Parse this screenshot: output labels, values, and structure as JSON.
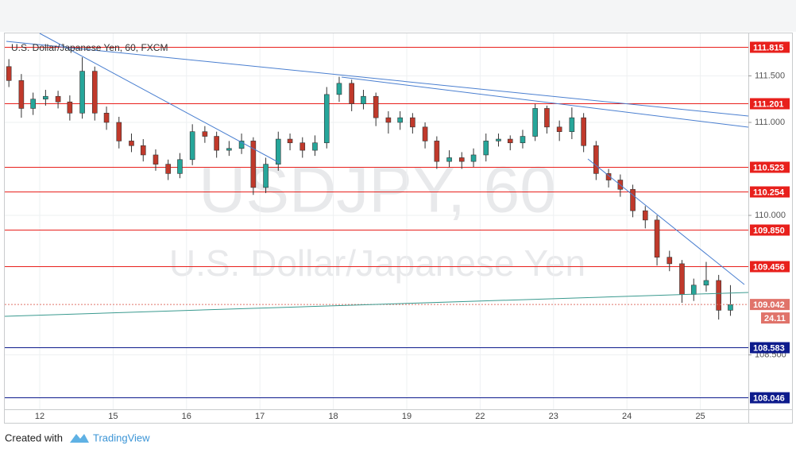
{
  "chart_data": {
    "type": "candlestick",
    "title": "U.S. Dollar/Japanese Yen, 60, FXCM",
    "watermark": {
      "symbol": "USDJPY, 60",
      "description": "U.S. Dollar/Japanese Yen"
    },
    "xlim": [
      -0.476,
      9.654
    ],
    "xticks": [
      {
        "value": 0,
        "label": "12"
      },
      {
        "value": 1,
        "label": "15"
      },
      {
        "value": 2,
        "label": "16"
      },
      {
        "value": 3,
        "label": "17"
      },
      {
        "value": 4,
        "label": "18"
      },
      {
        "value": 5,
        "label": "19"
      },
      {
        "value": 6,
        "label": "22"
      },
      {
        "value": 7,
        "label": "23"
      },
      {
        "value": 8,
        "label": "24"
      },
      {
        "value": 9,
        "label": "25"
      }
    ],
    "ylim": [
      107.915,
      111.957
    ],
    "yticks": [
      {
        "value": 111.5,
        "label": "111.500"
      },
      {
        "value": 111,
        "label": "111.000"
      },
      {
        "value": 110,
        "label": "110.000"
      },
      {
        "value": 108.5,
        "label": "108.500"
      }
    ],
    "up_color": "#26a69a",
    "down_color": "#c0392b",
    "x": [
      -0.42,
      -0.25,
      -0.09,
      0.08,
      0.25,
      0.41,
      0.58,
      0.75,
      0.91,
      1.08,
      1.25,
      1.41,
      1.58,
      1.75,
      1.91,
      2.08,
      2.25,
      2.41,
      2.58,
      2.75,
      2.91,
      3.08,
      3.25,
      3.41,
      3.58,
      3.75,
      3.91,
      4.08,
      4.25,
      4.41,
      4.58,
      4.75,
      4.91,
      5.08,
      5.25,
      5.41,
      5.58,
      5.75,
      5.91,
      6.08,
      6.25,
      6.41,
      6.58,
      6.75,
      6.91,
      7.08,
      7.25,
      7.41,
      7.58,
      7.75,
      7.91,
      8.08,
      8.25,
      8.41,
      8.58,
      8.75,
      8.91,
      9.08,
      9.25,
      9.41
    ],
    "open": [
      111.6,
      111.45,
      111.15,
      111.25,
      111.28,
      111.22,
      111.1,
      111.55,
      111.1,
      111.0,
      110.8,
      110.75,
      110.65,
      110.55,
      110.45,
      110.6,
      110.9,
      110.85,
      110.7,
      110.72,
      110.8,
      110.3,
      110.55,
      110.82,
      110.78,
      110.7,
      110.78,
      111.3,
      111.42,
      111.2,
      111.28,
      111.05,
      111.0,
      111.05,
      110.95,
      110.8,
      110.58,
      110.62,
      110.58,
      110.65,
      110.8,
      110.82,
      110.78,
      110.85,
      111.15,
      110.95,
      110.9,
      111.05,
      110.75,
      110.45,
      110.38,
      110.28,
      110.05,
      109.95,
      109.55,
      109.48,
      109.15,
      109.25,
      109.3,
      108.98
    ],
    "high": [
      111.68,
      111.52,
      111.32,
      111.35,
      111.34,
      111.29,
      111.7,
      111.6,
      111.17,
      111.06,
      110.88,
      110.82,
      110.71,
      110.6,
      110.67,
      110.98,
      110.96,
      110.9,
      110.8,
      110.88,
      110.84,
      110.62,
      110.9,
      110.88,
      110.84,
      110.86,
      111.38,
      111.49,
      111.46,
      111.35,
      111.32,
      111.12,
      111.12,
      111.1,
      111.0,
      110.85,
      110.7,
      110.68,
      110.72,
      110.88,
      110.88,
      110.86,
      110.92,
      111.2,
      111.18,
      111.02,
      111.16,
      111.1,
      110.8,
      110.5,
      110.44,
      110.33,
      110.1,
      110.0,
      109.62,
      109.52,
      109.32,
      109.5,
      109.36,
      109.25
    ],
    "low": [
      111.38,
      111.05,
      111.08,
      111.18,
      111.15,
      111.02,
      111.04,
      111.02,
      110.92,
      110.72,
      110.68,
      110.58,
      110.48,
      110.38,
      110.4,
      110.54,
      110.78,
      110.62,
      110.64,
      110.66,
      110.22,
      110.24,
      110.48,
      110.7,
      110.62,
      110.64,
      110.72,
      111.22,
      111.12,
      111.14,
      110.96,
      110.88,
      110.92,
      110.88,
      110.72,
      110.5,
      110.52,
      110.5,
      110.52,
      110.58,
      110.74,
      110.7,
      110.72,
      110.8,
      110.88,
      110.8,
      110.82,
      110.68,
      110.38,
      110.3,
      110.2,
      109.98,
      109.86,
      109.46,
      109.4,
      109.06,
      109.08,
      109.18,
      108.88,
      108.92
    ],
    "close": [
      111.45,
      111.15,
      111.25,
      111.28,
      111.22,
      111.1,
      111.55,
      111.1,
      111.0,
      110.8,
      110.75,
      110.65,
      110.55,
      110.45,
      110.6,
      110.9,
      110.85,
      110.7,
      110.72,
      110.8,
      110.3,
      110.55,
      110.82,
      110.78,
      110.7,
      110.78,
      111.3,
      111.42,
      111.2,
      111.28,
      111.05,
      111.0,
      111.05,
      110.95,
      110.8,
      110.58,
      110.62,
      110.58,
      110.65,
      110.8,
      110.82,
      110.78,
      110.85,
      111.15,
      110.95,
      110.9,
      111.05,
      110.75,
      110.45,
      110.38,
      110.28,
      110.05,
      109.95,
      109.55,
      109.48,
      109.15,
      109.25,
      109.3,
      108.98,
      109.04
    ],
    "levels": [
      {
        "value": 111.815,
        "label": "111.815",
        "color": "#e8201c"
      },
      {
        "value": 111.201,
        "label": "111.201",
        "color": "#e8201c"
      },
      {
        "value": 110.523,
        "label": "110.523",
        "color": "#e8201c"
      },
      {
        "value": 110.254,
        "label": "110.254",
        "color": "#e8201c"
      },
      {
        "value": 109.85,
        "label": "109.850",
        "color": "#e8201c"
      },
      {
        "value": 109.456,
        "label": "109.456",
        "color": "#e8201c"
      },
      {
        "value": 108.583,
        "label": "108.583",
        "color": "#0d1b8c"
      },
      {
        "value": 108.046,
        "label": "108.046",
        "color": "#0d1b8c"
      }
    ],
    "last_price": {
      "value": 109.042,
      "label": "109.042",
      "countdown": "24.11",
      "color": "#e0736a"
    }
  },
  "footer": {
    "created": "Created with",
    "brand": "TradingView"
  }
}
